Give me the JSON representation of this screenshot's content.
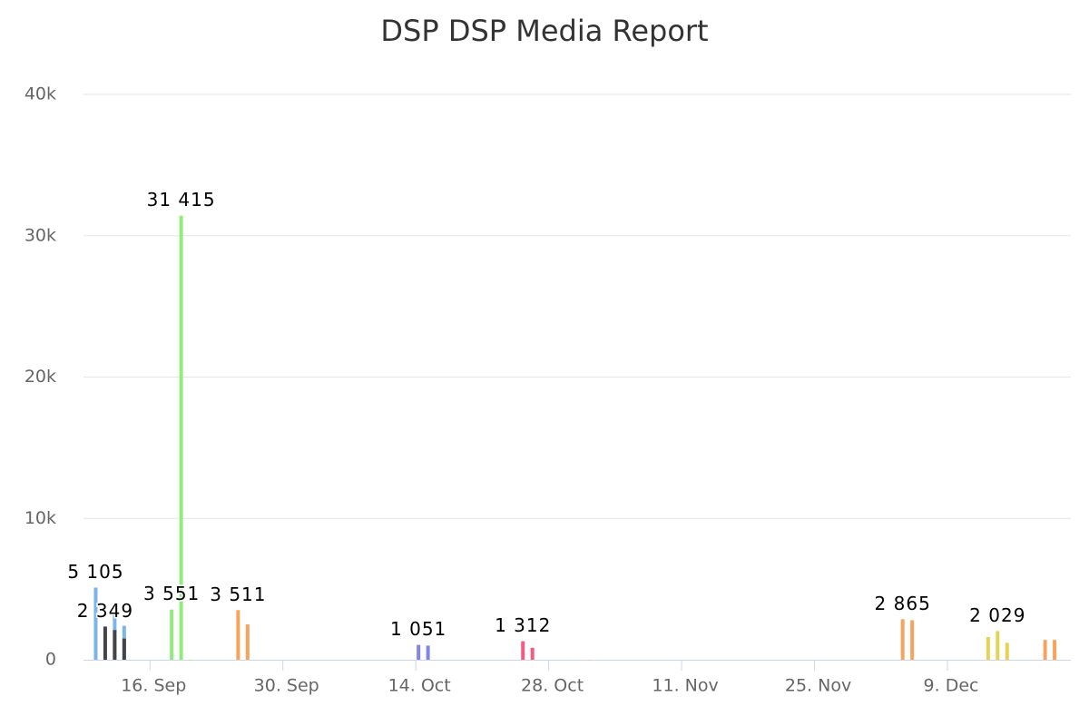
{
  "chart_data": {
    "type": "bar",
    "title": "DSP DSP Media Report",
    "xlim": [
      "09-09",
      "12-22"
    ],
    "xticks": [
      {
        "value": "09-16",
        "label": "16. Sep"
      },
      {
        "value": "09-30",
        "label": "30. Sep"
      },
      {
        "value": "10-14",
        "label": "14. Oct"
      },
      {
        "value": "10-28",
        "label": "28. Oct"
      },
      {
        "value": "11-11",
        "label": "11. Nov"
      },
      {
        "value": "11-25",
        "label": "25. Nov"
      },
      {
        "value": "12-09",
        "label": "9. Dec"
      }
    ],
    "ylim": [
      0,
      40000
    ],
    "yticks": [
      0,
      {
        "value": 10000,
        "label": "10k"
      },
      {
        "value": 20000,
        "label": "20k"
      },
      {
        "value": 30000,
        "label": "30k"
      },
      {
        "value": 40000,
        "label": "40k"
      }
    ],
    "grid": true,
    "series": [
      {
        "color": "#7cb5ec",
        "x": [
          "09-10",
          "09-12",
          "09-13"
        ],
        "values": [
          5105,
          3400,
          2400
        ],
        "value_labels": [
          "5 105",
          null,
          null
        ]
      },
      {
        "color": "#434348",
        "x": [
          "09-11",
          "09-12",
          "09-13"
        ],
        "values": [
          2349,
          2100,
          1500
        ],
        "value_labels": [
          "2 349",
          null,
          null
        ]
      },
      {
        "color": "#90ed7d",
        "x": [
          "09-18",
          "09-19",
          "09-20"
        ],
        "values": [
          3551,
          31415,
          3
        ],
        "value_labels": [
          "3 551",
          "31 415",
          null
        ]
      },
      {
        "color": "#f7a35c",
        "x": [
          "09-25",
          "09-26"
        ],
        "values": [
          3511,
          2500
        ],
        "value_labels": [
          "3 511",
          null
        ]
      },
      {
        "color": "#8085e9",
        "x": [
          "10-14",
          "10-15"
        ],
        "values": [
          1051,
          1000
        ],
        "value_labels": [
          "1 051",
          null
        ]
      },
      {
        "color": "#f15c80",
        "x": [
          "10-25",
          "10-26"
        ],
        "values": [
          1312,
          850
        ],
        "value_labels": [
          "1 312",
          null
        ]
      },
      {
        "color": "#e4d354",
        "x": [
          "11-01"
        ],
        "values": [
          1
        ]
      },
      {
        "color": "#f7a35c",
        "x": [
          "12-04",
          "12-05"
        ],
        "values": [
          2865,
          2800
        ],
        "value_labels": [
          "2 865",
          null
        ]
      },
      {
        "color": "#e4d354",
        "x": [
          "12-13",
          "12-14",
          "12-15"
        ],
        "values": [
          1600,
          2029,
          1200
        ],
        "value_labels": [
          null,
          "2 029",
          null
        ]
      },
      {
        "color": "#f7a35c",
        "x": [
          "12-19",
          "12-20"
        ],
        "values": [
          1400,
          1400
        ]
      }
    ]
  }
}
